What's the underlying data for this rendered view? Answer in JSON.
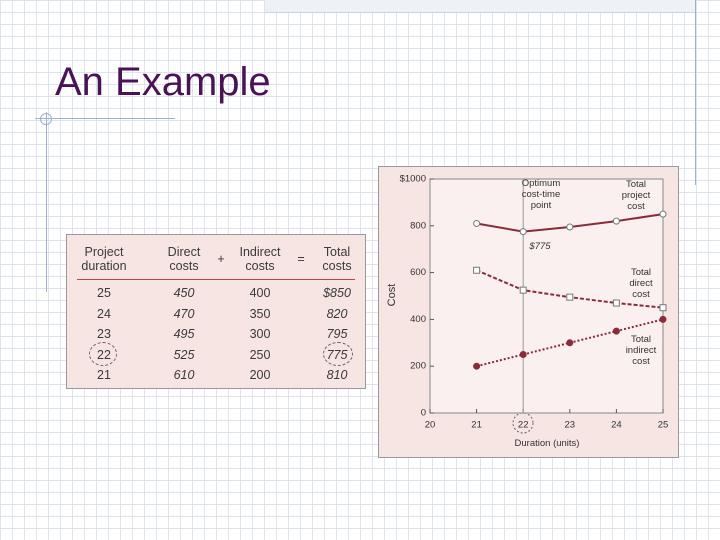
{
  "title": "An Example",
  "table": {
    "header": [
      "Project duration",
      "Direct costs",
      "+",
      "Indirect costs",
      "=",
      "Total costs"
    ],
    "rows": [
      [
        "25",
        "450",
        "",
        "400",
        "",
        "$850"
      ],
      [
        "24",
        "470",
        "",
        "350",
        "",
        "820"
      ],
      [
        "23",
        "495",
        "",
        "300",
        "",
        "795"
      ],
      [
        "22",
        "525",
        "",
        "250",
        "",
        "775"
      ],
      [
        "21",
        "610",
        "",
        "200",
        "",
        "810"
      ]
    ]
  },
  "chart_data": {
    "type": "line",
    "x": [
      21,
      22,
      23,
      24,
      25
    ],
    "series": [
      {
        "name": "Total project cost",
        "color": "#8b2a38",
        "style": "solid",
        "marker": "open-circle",
        "values": [
          810,
          775,
          795,
          820,
          850
        ]
      },
      {
        "name": "Total direct cost",
        "color": "#8b2a38",
        "style": "dashed",
        "marker": "open-square",
        "values": [
          610,
          525,
          495,
          470,
          450
        ]
      },
      {
        "name": "Total indirect cost",
        "color": "#8b2a38",
        "style": "dotted",
        "marker": "filled-circle",
        "values": [
          200,
          250,
          300,
          350,
          400
        ]
      }
    ],
    "xlim": [
      20,
      25
    ],
    "xticks": [
      20,
      21,
      22,
      23,
      24,
      25
    ],
    "ylim": [
      0,
      1000
    ],
    "yticks": [
      0,
      200,
      400,
      600,
      800,
      {
        "value": 1000,
        "label": "$1000"
      }
    ],
    "xlabel": "Duration (units)",
    "ylabel": "Cost",
    "annotations": [
      "Optimum cost-time point",
      "$775"
    ]
  }
}
